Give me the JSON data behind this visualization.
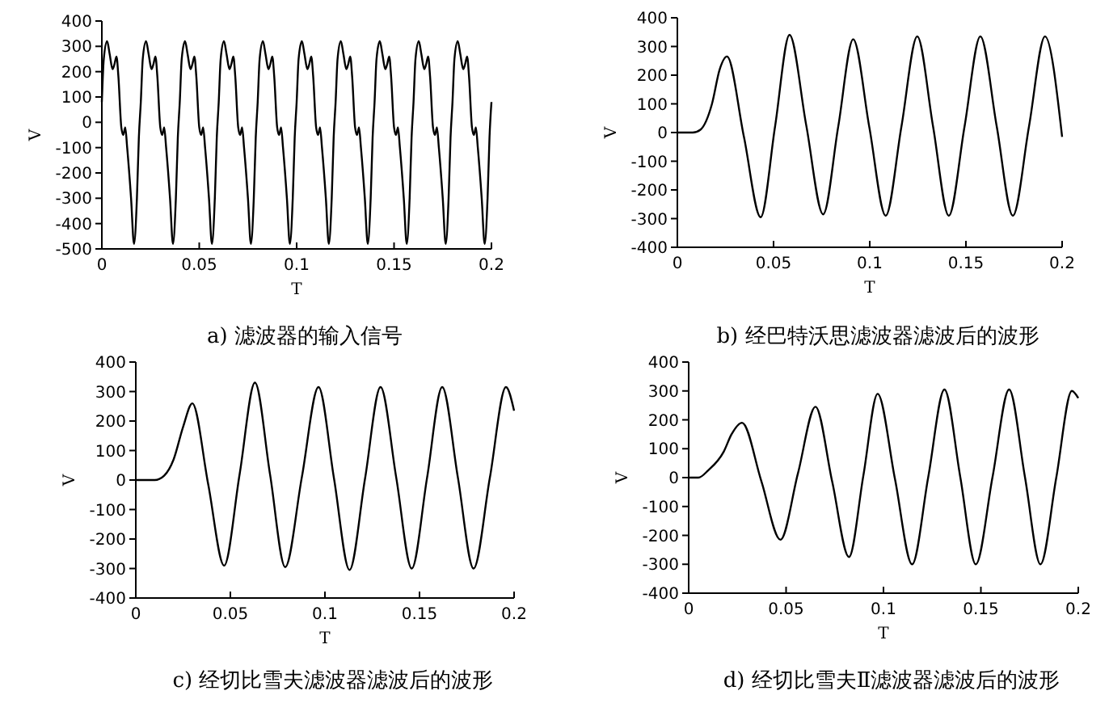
{
  "chart_data": [
    {
      "type": "line",
      "title": "a) 滤波器的输入信号",
      "xlabel": "T",
      "ylabel": "V",
      "xlim": [
        0,
        0.2
      ],
      "ylim": [
        -500,
        400
      ],
      "xticks": [
        0,
        0.05,
        0.1,
        0.15,
        0.2
      ],
      "yticks": [
        -500,
        -400,
        -300,
        -200,
        -100,
        0,
        100,
        200,
        300,
        400
      ],
      "color": "#000000",
      "x": [
        0,
        0.001,
        0.0027,
        0.004,
        0.0055,
        0.0065,
        0.0075,
        0.0085,
        0.01,
        0.011,
        0.012,
        0.013,
        0.015,
        0.0165,
        0.018,
        0.019,
        0.02,
        0.021,
        0.0227,
        0.024,
        0.0255,
        0.0265,
        0.0275,
        0.0285,
        0.03,
        0.031,
        0.032,
        0.033,
        0.035,
        0.0365,
        0.038,
        0.039,
        0.04,
        0.041,
        0.0427,
        0.044,
        0.0455,
        0.0465,
        0.0475,
        0.0485,
        0.05,
        0.051,
        0.052,
        0.053,
        0.055,
        0.0565,
        0.058,
        0.059,
        0.06,
        0.061,
        0.0627,
        0.064,
        0.0655,
        0.0665,
        0.0675,
        0.0685,
        0.07,
        0.071,
        0.072,
        0.073,
        0.075,
        0.0765,
        0.078,
        0.079,
        0.08,
        0.081,
        0.0827,
        0.084,
        0.0855,
        0.0865,
        0.0875,
        0.0885,
        0.09,
        0.091,
        0.092,
        0.093,
        0.095,
        0.0965,
        0.098,
        0.099,
        0.1,
        0.101,
        0.1027,
        0.104,
        0.1055,
        0.1065,
        0.1075,
        0.1085,
        0.11,
        0.111,
        0.112,
        0.113,
        0.115,
        0.1165,
        0.118,
        0.119,
        0.12,
        0.121,
        0.1227,
        0.124,
        0.1255,
        0.1265,
        0.1275,
        0.1285,
        0.13,
        0.131,
        0.132,
        0.133,
        0.135,
        0.1365,
        0.138,
        0.139,
        0.14,
        0.141,
        0.1427,
        0.144,
        0.1455,
        0.1465,
        0.1475,
        0.1485,
        0.15,
        0.151,
        0.152,
        0.153,
        0.155,
        0.1565,
        0.158,
        0.159,
        0.16,
        0.161,
        0.1627,
        0.164,
        0.1655,
        0.1665,
        0.1675,
        0.1685,
        0.17,
        0.171,
        0.172,
        0.173,
        0.175,
        0.1765,
        0.178,
        0.179,
        0.18,
        0.181,
        0.1827,
        0.184,
        0.1855,
        0.1865,
        0.1875,
        0.1885,
        0.19,
        0.191,
        0.192,
        0.193,
        0.195,
        0.1965,
        0.198,
        0.199,
        0.2
      ],
      "values": [
        80,
        250,
        320,
        270,
        210,
        230,
        260,
        180,
        -20,
        -50,
        -20,
        -100,
        -300,
        -480,
        -300,
        -60,
        80,
        250,
        320,
        270,
        210,
        230,
        260,
        180,
        -20,
        -50,
        -20,
        -100,
        -300,
        -480,
        -300,
        -60,
        80,
        250,
        320,
        270,
        210,
        230,
        260,
        180,
        -20,
        -50,
        -20,
        -100,
        -300,
        -480,
        -300,
        -60,
        80,
        250,
        320,
        270,
        210,
        230,
        260,
        180,
        -20,
        -50,
        -20,
        -100,
        -300,
        -480,
        -300,
        -60,
        80,
        250,
        320,
        270,
        210,
        230,
        260,
        180,
        -20,
        -50,
        -20,
        -100,
        -300,
        -480,
        -300,
        -60,
        80,
        250,
        320,
        270,
        210,
        230,
        260,
        180,
        -20,
        -50,
        -20,
        -100,
        -300,
        -480,
        -300,
        -60,
        80,
        250,
        320,
        270,
        210,
        230,
        260,
        180,
        -20,
        -50,
        -20,
        -100,
        -300,
        -480,
        -300,
        -60,
        80,
        250,
        320,
        270,
        210,
        230,
        260,
        180,
        -20,
        -50,
        -20,
        -100,
        -300,
        -480,
        -300,
        -60,
        80,
        250,
        320,
        270,
        210,
        230,
        260,
        180,
        -20,
        -50,
        -20,
        -100,
        -300,
        -480,
        -300,
        -60,
        80,
        250,
        320,
        270,
        210,
        230,
        260,
        180,
        -20,
        -50,
        -20,
        -100,
        -300,
        -480,
        -300,
        -60,
        80
      ]
    },
    {
      "type": "line",
      "title": "b) 经巴特沃思滤波器滤波后的波形",
      "xlabel": "T",
      "ylabel": "V",
      "xlim": [
        0,
        0.2
      ],
      "ylim": [
        -400,
        400
      ],
      "xticks": [
        0,
        0.05,
        0.1,
        0.15,
        0.2
      ],
      "yticks": [
        -400,
        -300,
        -200,
        -100,
        0,
        100,
        200,
        300,
        400
      ],
      "color": "#000000",
      "x": [
        0,
        0.008,
        0.012,
        0.018,
        0.022,
        0.0258,
        0.0346,
        0.0433,
        0.0508,
        0.0583,
        0.067,
        0.0758,
        0.0836,
        0.0914,
        0.0998,
        0.1083,
        0.1165,
        0.1247,
        0.1329,
        0.1411,
        0.1493,
        0.1575,
        0.166,
        0.1744,
        0.1828,
        0.1911,
        0.2
      ],
      "values": [
        0,
        0,
        10,
        100,
        220,
        265,
        -15,
        -295,
        22,
        340,
        25,
        -285,
        20,
        325,
        18,
        -290,
        22,
        335,
        22,
        -290,
        22,
        335,
        22,
        -290,
        22,
        335,
        -15
      ]
    },
    {
      "type": "line",
      "title": "c) 经切比雪夫滤波器滤波后的波形",
      "xlabel": "T",
      "ylabel": "V",
      "xlim": [
        0,
        0.2
      ],
      "ylim": [
        -400,
        400
      ],
      "xticks": [
        0,
        0.05,
        0.1,
        0.15,
        0.2
      ],
      "yticks": [
        -400,
        -300,
        -200,
        -100,
        0,
        100,
        200,
        300,
        400
      ],
      "color": "#000000",
      "x": [
        0,
        0.01,
        0.015,
        0.02,
        0.025,
        0.0299,
        0.0383,
        0.0467,
        0.0549,
        0.063,
        0.071,
        0.079,
        0.0878,
        0.0966,
        0.1048,
        0.113,
        0.1212,
        0.1294,
        0.1377,
        0.1459,
        0.154,
        0.162,
        0.1703,
        0.1786,
        0.1872,
        0.1957,
        0.2
      ],
      "values": [
        0,
        0,
        15,
        70,
        180,
        260,
        -15,
        -290,
        20,
        330,
        18,
        -295,
        10,
        315,
        5,
        -305,
        5,
        315,
        8,
        -300,
        8,
        315,
        8,
        -300,
        8,
        315,
        235
      ]
    },
    {
      "type": "line",
      "title": "d) 经切比雪夫Ⅱ滤波器滤波后的波形",
      "xlabel": "T",
      "ylabel": "V",
      "xlim": [
        0,
        0.2
      ],
      "ylim": [
        -400,
        400
      ],
      "xticks": [
        0,
        0.05,
        0.1,
        0.15,
        0.2
      ],
      "yticks": [
        -400,
        -300,
        -200,
        -100,
        0,
        100,
        200,
        300,
        400
      ],
      "color": "#000000",
      "x": [
        0,
        0.005,
        0.01,
        0.018,
        0.022,
        0.0274,
        0.0373,
        0.0471,
        0.0561,
        0.0651,
        0.0737,
        0.0823,
        0.0897,
        0.097,
        0.1059,
        0.1147,
        0.123,
        0.1313,
        0.1394,
        0.1474,
        0.156,
        0.1645,
        0.1726,
        0.1806,
        0.1887,
        0.1967,
        0.2
      ],
      "values": [
        0,
        0,
        25,
        90,
        150,
        190,
        -12,
        -215,
        15,
        245,
        -15,
        -275,
        8,
        290,
        -5,
        -300,
        3,
        305,
        3,
        -300,
        3,
        305,
        3,
        -300,
        0,
        300,
        275
      ]
    }
  ]
}
